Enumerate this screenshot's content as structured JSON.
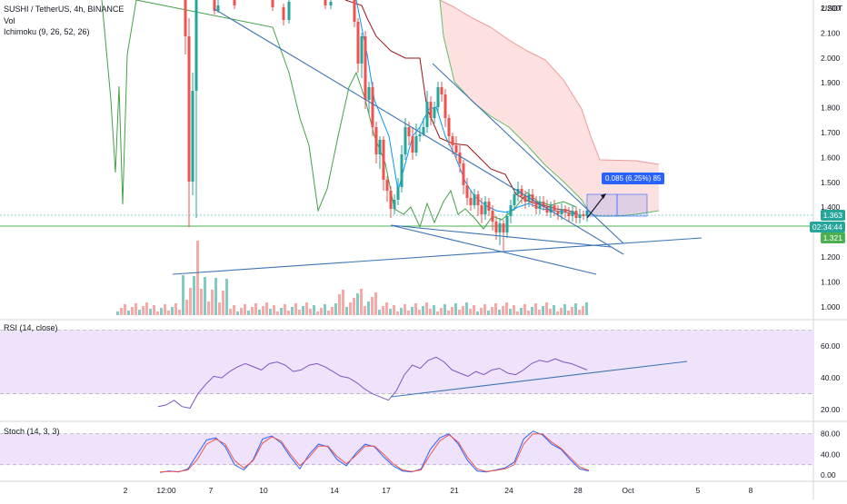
{
  "header": {
    "symbol": "SUSHI / TetherUS, 4h, BINANCE",
    "vol_label": "Vol",
    "ichimoku_label": "Ichimoku (9, 26, 52, 26)",
    "currency": "USDT"
  },
  "price_axis": {
    "ticks": [
      "2.200",
      "2.100",
      "2.000",
      "1.900",
      "1.800",
      "1.700",
      "1.600",
      "1.500",
      "1.400",
      "1.300",
      "1.200",
      "1.100",
      "1.000"
    ]
  },
  "price_badges": {
    "last": "1.363",
    "countdown": "02:34:44",
    "base": "1.321",
    "colors": {
      "last": "#26a69a",
      "countdown": "#26a69a",
      "base": "#4caf50"
    }
  },
  "measure": {
    "text": "0.085 (6.25%) 85"
  },
  "rsi": {
    "label": "RSI (14, close)",
    "ticks": [
      "60.00",
      "40.00",
      "20.00"
    ]
  },
  "stoch": {
    "label": "Stoch (14, 3, 3)",
    "ticks": [
      "80.00",
      "40.00",
      "0.00"
    ]
  },
  "time_axis": {
    "ticks": [
      "2",
      "12:00",
      "7",
      "10",
      "14",
      "17",
      "21",
      "24",
      "28",
      "Oct",
      "5",
      "8"
    ]
  },
  "colors": {
    "up": "#26a69a",
    "down": "#ef5350",
    "trendline": "#3d75b5",
    "kumo": "#fbd7d5",
    "rsi_band": "#efe2fb",
    "rsi_line": "#7e57c2",
    "stoch_k": "#2962ff",
    "stoch_d": "#ef5350",
    "ichimoku_lagging": "#43a047",
    "ichimoku_base": "#991515",
    "ichimoku_conv": "#0496ff"
  },
  "chart_data": [
    {
      "type": "candlestick",
      "title": "SUSHI / TetherUS, 4h, BINANCE",
      "ylabel": "USDT",
      "ylim": [
        0.95,
        2.22
      ],
      "x_ticks": [
        "2",
        "12:00",
        "7",
        "10",
        "14",
        "17",
        "21",
        "24",
        "28",
        "Oct",
        "5",
        "8"
      ],
      "series": [
        {
          "name": "Price",
          "note": "candles from ~2.2 declining to ~1.36"
        },
        {
          "name": "Ichimoku (9, 26, 52, 26)"
        }
      ],
      "annotations": [
        "0.085 (6.25%) 85"
      ],
      "last_price": 1.363,
      "reference_price": 1.321
    },
    {
      "type": "line",
      "title": "RSI (14, close)",
      "ylim": [
        15,
        72
      ],
      "values": [
        22,
        23,
        26,
        22,
        21,
        30,
        36,
        41,
        40,
        44,
        47,
        49,
        47,
        45,
        49,
        50,
        48,
        44,
        45,
        48,
        49,
        47,
        44,
        41,
        40,
        37,
        33,
        30,
        28,
        26,
        32,
        42,
        48,
        46,
        51,
        53,
        50,
        45,
        43,
        41,
        44,
        42,
        45,
        46,
        43,
        42,
        45,
        49,
        51,
        50,
        52,
        50,
        49,
        47,
        45
      ]
    },
    {
      "type": "line",
      "title": "Stoch (14, 3, 3)",
      "ylim": [
        -5,
        90
      ],
      "series": [
        {
          "name": "%K",
          "values": [
            5,
            8,
            6,
            12,
            40,
            68,
            72,
            55,
            20,
            10,
            30,
            70,
            76,
            62,
            35,
            12,
            40,
            60,
            55,
            30,
            18,
            42,
            60,
            55,
            35,
            18,
            8,
            6,
            12,
            50,
            72,
            80,
            60,
            28,
            8,
            6,
            10,
            14,
            25,
            70,
            85,
            78,
            60,
            50,
            30,
            12,
            8
          ]
        },
        {
          "name": "%D",
          "values": [
            6,
            7,
            7,
            10,
            30,
            60,
            70,
            60,
            28,
            14,
            28,
            62,
            74,
            66,
            40,
            18,
            35,
            56,
            56,
            36,
            22,
            38,
            56,
            56,
            40,
            22,
            10,
            7,
            10,
            40,
            66,
            78,
            64,
            34,
            12,
            7,
            9,
            12,
            20,
            60,
            80,
            80,
            64,
            52,
            34,
            16,
            9
          ]
        }
      ]
    }
  ]
}
